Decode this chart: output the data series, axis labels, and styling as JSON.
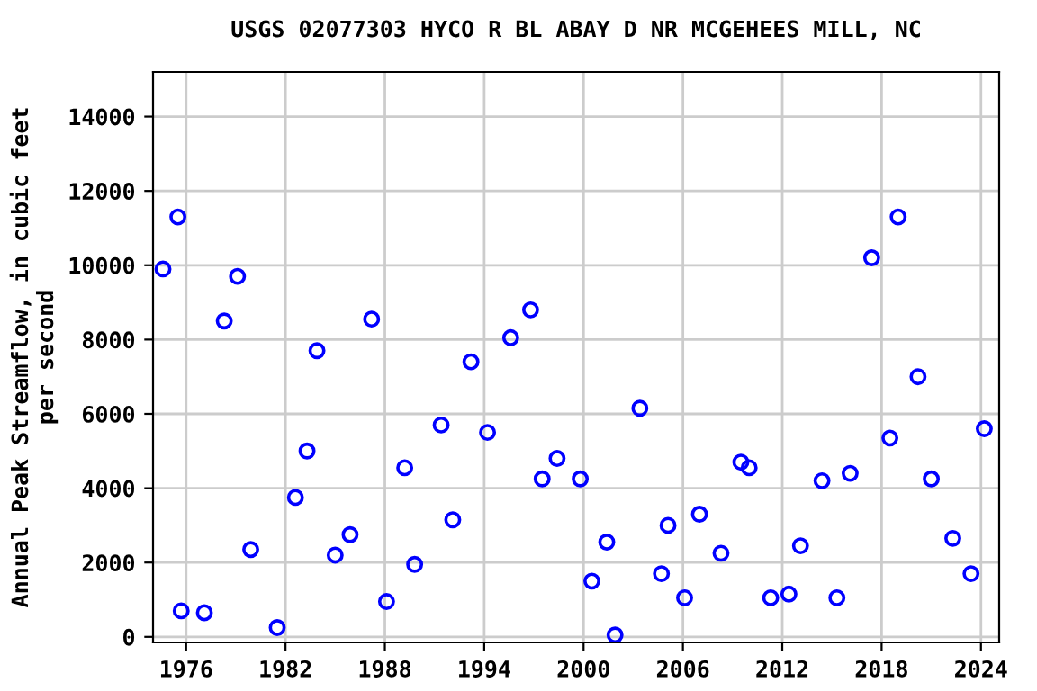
{
  "chart_data": {
    "type": "scatter",
    "title": "USGS 02077303 HYCO R BL ABAY D NR MCGEHEES MILL, NC",
    "ylabel": "Annual Peak Streamflow, in cubic feet\nper second",
    "x": [
      1974.6,
      1975.5,
      1975.7,
      1977.1,
      1978.3,
      1979.1,
      1979.9,
      1981.5,
      1982.6,
      1983.3,
      1983.9,
      1985.0,
      1985.9,
      1987.2,
      1988.1,
      1989.2,
      1989.8,
      1991.4,
      1992.1,
      1993.2,
      1994.2,
      1995.6,
      1996.8,
      1997.5,
      1998.4,
      1999.8,
      2000.5,
      2001.4,
      2001.9,
      2003.4,
      2004.7,
      2005.1,
      2006.1,
      2007.0,
      2008.3,
      2009.5,
      2010.0,
      2011.3,
      2012.4,
      2013.1,
      2014.4,
      2015.3,
      2016.1,
      2017.4,
      2018.5,
      2019.0,
      2020.2,
      2021.0,
      2022.3,
      2023.4,
      2024.2
    ],
    "series": [
      {
        "color": "#0000ff",
        "values": [
          9900,
          11300,
          700,
          650,
          8500,
          9700,
          2350,
          250,
          3750,
          5000,
          7700,
          2200,
          2750,
          8550,
          950,
          4550,
          1950,
          5700,
          3150,
          7400,
          5500,
          8050,
          8800,
          4250,
          4800,
          4250,
          1500,
          2550,
          50,
          6150,
          1700,
          3000,
          1050,
          3300,
          2250,
          4700,
          4550,
          1050,
          1150,
          2450,
          4200,
          1050,
          4400,
          10200,
          5350,
          11300,
          7000,
          4250,
          2650,
          1700,
          5600
        ]
      }
    ],
    "xlim": [
      1974,
      2025.1
    ],
    "xticks": [
      1976,
      1982,
      1988,
      1994,
      2000,
      2006,
      2012,
      2018,
      2024
    ],
    "ylim": [
      -150,
      15200
    ],
    "yticks": [
      0,
      2000,
      4000,
      6000,
      8000,
      10000,
      12000,
      14000
    ],
    "grid": true,
    "marker": "circle",
    "legend": false
  }
}
